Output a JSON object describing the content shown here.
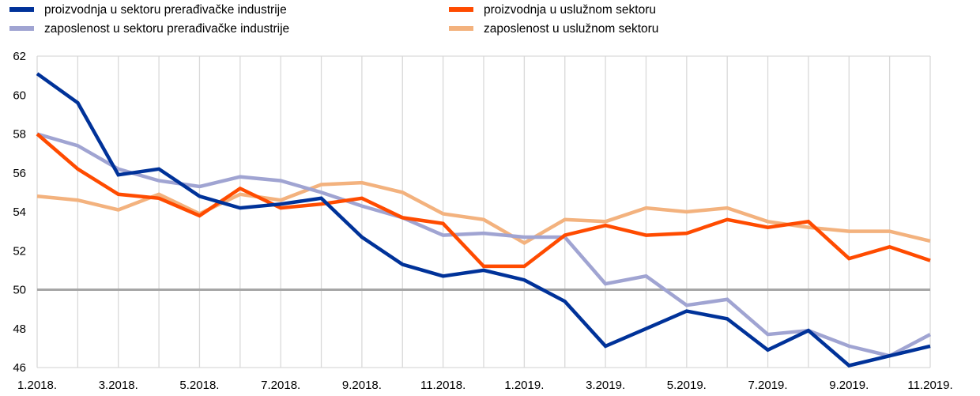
{
  "chart_data": {
    "type": "line",
    "title": "",
    "xlabel": "",
    "ylabel": "",
    "ylim": [
      46,
      62
    ],
    "yticks": [
      46,
      48,
      50,
      52,
      54,
      56,
      58,
      60,
      62
    ],
    "reference_line": 50,
    "grid": "vertical",
    "legend_position": "top",
    "x": [
      "1.2018.",
      "2.2018.",
      "3.2018.",
      "4.2018.",
      "5.2018.",
      "6.2018.",
      "7.2018.",
      "8.2018.",
      "9.2018.",
      "10.2018.",
      "11.2018.",
      "12.2018.",
      "1.2019.",
      "2.2019.",
      "3.2019.",
      "4.2019.",
      "5.2019.",
      "6.2019.",
      "7.2019.",
      "8.2019.",
      "9.2019.",
      "10.2019.",
      "11.2019."
    ],
    "x_tick_labels": [
      "1.2018.",
      "3.2018.",
      "5.2018.",
      "7.2018.",
      "9.2018.",
      "11.2018.",
      "1.2019.",
      "3.2019.",
      "5.2019.",
      "7.2019.",
      "9.2019.",
      "11.2019."
    ],
    "series": [
      {
        "name": "proizvodnja u sektoru prerađivačke industrije",
        "color": "#003299",
        "values": [
          61.1,
          59.6,
          55.9,
          56.2,
          54.8,
          54.2,
          54.4,
          54.7,
          52.7,
          51.3,
          50.7,
          51.0,
          50.5,
          49.4,
          47.1,
          48.0,
          48.9,
          48.5,
          46.9,
          47.9,
          46.1,
          46.6,
          47.1
        ]
      },
      {
        "name": "proizvodnja u uslužnom sektoru",
        "color": "#FF4B00",
        "values": [
          58.0,
          56.2,
          54.9,
          54.7,
          53.8,
          55.2,
          54.2,
          54.4,
          54.7,
          53.7,
          53.4,
          51.2,
          51.2,
          52.8,
          53.3,
          52.8,
          52.9,
          53.6,
          53.2,
          53.5,
          51.6,
          52.2,
          51.5
        ]
      },
      {
        "name": "zaposlenost u sektoru prerađivačke industrije",
        "color": "#A0A4D2",
        "values": [
          58.0,
          57.4,
          56.2,
          55.6,
          55.3,
          55.8,
          55.6,
          55.0,
          54.3,
          53.7,
          52.8,
          52.9,
          52.7,
          52.7,
          50.3,
          50.7,
          49.2,
          49.5,
          47.7,
          47.9,
          47.1,
          46.6,
          47.7
        ]
      },
      {
        "name": "zaposlenost u uslužnom sektoru",
        "color": "#F3B27E",
        "values": [
          54.8,
          54.6,
          54.1,
          54.9,
          53.9,
          54.9,
          54.6,
          55.4,
          55.5,
          55.0,
          53.9,
          53.6,
          52.4,
          53.6,
          53.5,
          54.2,
          54.0,
          54.2,
          53.5,
          53.2,
          53.0,
          53.0,
          52.5
        ]
      }
    ]
  }
}
